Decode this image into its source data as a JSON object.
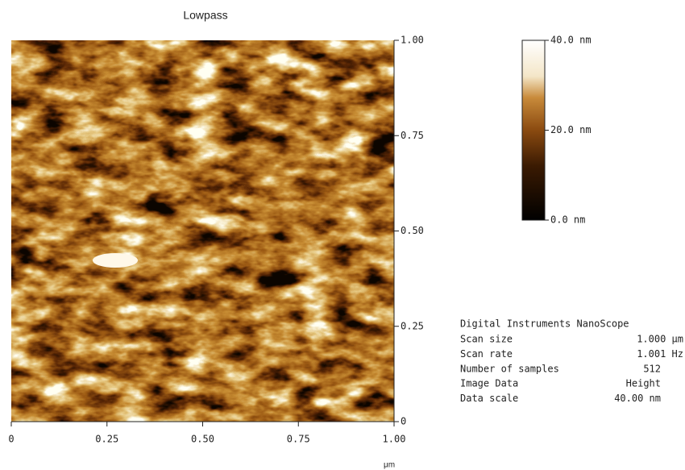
{
  "title": "Lowpass",
  "y_axis": {
    "ticks": [
      "1.00",
      "0.75",
      "0.50",
      "0.25",
      "0"
    ]
  },
  "x_axis": {
    "ticks": [
      "0",
      "0.25",
      "0.50",
      "0.75",
      "1.00"
    ],
    "unit": "μm"
  },
  "color_scale": {
    "labels": [
      "40.0 nm",
      "20.0 nm",
      "0.0 nm"
    ]
  },
  "info": {
    "header": "Digital Instruments NanoScope",
    "rows": [
      [
        "Scan size",
        "1.000 μm"
      ],
      [
        "Scan rate",
        "1.001 Hz"
      ],
      [
        "Number of samples",
        "512"
      ],
      [
        "Image Data",
        "Height"
      ],
      [
        "Data scale",
        "40.00 nm"
      ]
    ]
  }
}
